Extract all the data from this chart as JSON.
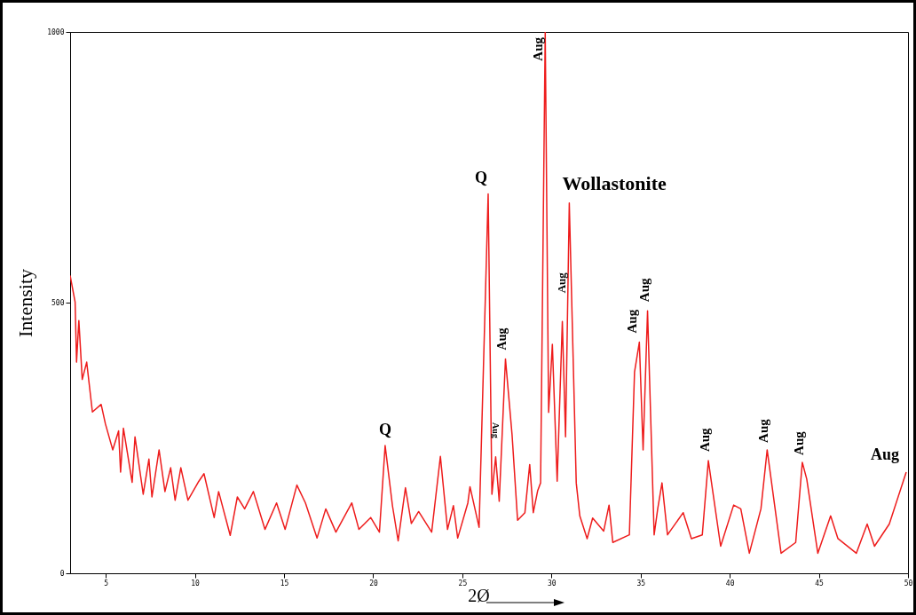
{
  "chart_data": {
    "type": "line",
    "xlabel": "2Ø",
    "ylabel": "Intensity",
    "color": "#ee1c1c",
    "xlim": [
      3,
      50
    ],
    "ylim": [
      0,
      1000
    ],
    "xticks": [
      5,
      10,
      15,
      20,
      25,
      30,
      35,
      40,
      45,
      50
    ],
    "yticks": [
      0,
      500,
      1000
    ],
    "x": [
      3.0,
      3.28,
      3.36,
      3.49,
      3.68,
      3.93,
      4.25,
      4.74,
      4.98,
      5.39,
      5.72,
      5.83,
      5.99,
      6.48,
      6.64,
      7.1,
      7.42,
      7.59,
      7.99,
      8.32,
      8.64,
      8.89,
      9.21,
      9.61,
      10.18,
      10.51,
      11.08,
      11.33,
      11.98,
      12.38,
      12.79,
      13.28,
      13.93,
      14.58,
      15.06,
      15.72,
      16.2,
      16.85,
      17.34,
      17.91,
      18.8,
      19.2,
      19.86,
      20.35,
      20.67,
      21.08,
      21.4,
      21.81,
      22.14,
      22.55,
      23.28,
      23.77,
      24.17,
      24.5,
      24.74,
      25.31,
      25.43,
      25.94,
      26.45,
      26.66,
      26.87,
      27.07,
      27.42,
      27.79,
      28.1,
      28.51,
      28.78,
      28.98,
      29.23,
      29.39,
      29.65,
      29.84,
      30.05,
      30.32,
      30.61,
      30.79,
      31.0,
      31.39,
      31.59,
      32.0,
      32.31,
      32.93,
      33.23,
      33.44,
      34.37,
      34.66,
      34.93,
      35.14,
      35.39,
      35.76,
      35.96,
      36.2,
      36.51,
      37.39,
      37.85,
      38.46,
      38.8,
      39.49,
      40.22,
      40.62,
      41.1,
      41.75,
      42.1,
      42.88,
      43.7,
      44.07,
      44.32,
      44.94,
      45.66,
      46.07,
      47.1,
      47.71,
      48.12,
      48.95,
      49.9
    ],
    "values": [
      550,
      501,
      390,
      467,
      358,
      390,
      298,
      312,
      276,
      228,
      263,
      187,
      268,
      168,
      252,
      146,
      211,
      141,
      228,
      151,
      195,
      135,
      195,
      135,
      168,
      184,
      103,
      151,
      70,
      141,
      119,
      151,
      81,
      130,
      81,
      163,
      130,
      65,
      119,
      76,
      130,
      81,
      103,
      76,
      236,
      125,
      60,
      158,
      92,
      114,
      76,
      216,
      81,
      125,
      65,
      130,
      160,
      85,
      701,
      146,
      215,
      133,
      396,
      256,
      98,
      112,
      201,
      112,
      153,
      167,
      1000,
      297,
      423,
      170,
      465,
      252,
      684,
      167,
      106,
      64,
      102,
      78,
      126,
      57,
      71,
      372,
      427,
      228,
      485,
      71,
      119,
      167,
      71,
      112,
      64,
      71,
      208,
      50,
      126,
      119,
      37,
      119,
      228,
      37,
      57,
      205,
      174,
      37,
      106,
      64,
      37,
      91,
      50,
      91,
      187
    ],
    "annotations": [
      {
        "text": "Q",
        "x": 20.67,
        "y": 236
      },
      {
        "text": "Q",
        "x": 26.45,
        "y": 701
      },
      {
        "text": "Aug",
        "x": 26.87,
        "y": 215
      },
      {
        "text": "Aug",
        "x": 27.42,
        "y": 396
      },
      {
        "text": "Aug",
        "x": 29.65,
        "y": 1000
      },
      {
        "text": "Aug",
        "x": 30.61,
        "y": 465
      },
      {
        "text": "Wollastonite",
        "x": 31.0,
        "y": 684
      },
      {
        "text": "Aug",
        "x": 34.93,
        "y": 427
      },
      {
        "text": "Aug",
        "x": 35.39,
        "y": 485
      },
      {
        "text": "Aug",
        "x": 38.8,
        "y": 208
      },
      {
        "text": "Aug",
        "x": 42.1,
        "y": 228
      },
      {
        "text": "Aug",
        "x": 44.07,
        "y": 205
      },
      {
        "text": "Aug",
        "x": 49.9,
        "y": 187
      }
    ]
  }
}
